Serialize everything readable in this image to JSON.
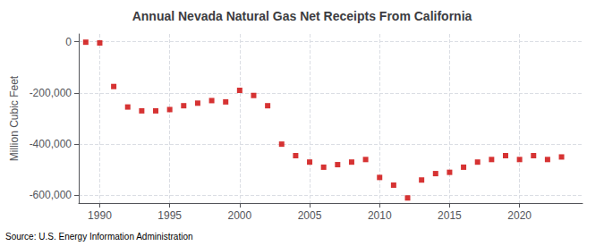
{
  "chart_data": {
    "type": "scatter",
    "title": "Annual Nevada Natural Gas Net Receipts From California",
    "ylabel": "Million Cubic Feet",
    "annotation": "Source: U.S. Energy Information Administration",
    "x": [
      1989,
      1990,
      1991,
      1992,
      1993,
      1994,
      1995,
      1996,
      1997,
      1998,
      1999,
      2000,
      2001,
      2002,
      2003,
      2004,
      2005,
      2006,
      2007,
      2008,
      2009,
      2010,
      2011,
      2012,
      2013,
      2014,
      2015,
      2016,
      2017,
      2018,
      2019,
      2020,
      2021,
      2022,
      2023
    ],
    "values": [
      -2000,
      -5000,
      -175000,
      -255000,
      -270000,
      -270000,
      -265000,
      -250000,
      -240000,
      -230000,
      -235000,
      -190000,
      -210000,
      -250000,
      -400000,
      -445000,
      -470000,
      -490000,
      -480000,
      -470000,
      -460000,
      -530000,
      -560000,
      -610000,
      -540000,
      -515000,
      -510000,
      -490000,
      -470000,
      -460000,
      -445000,
      -460000,
      -445000,
      -460000,
      -450000
    ],
    "color": "#cc0000",
    "marker": "square",
    "xlim": [
      1988.5,
      2024.5
    ],
    "xticks": [
      1990,
      1995,
      2000,
      2005,
      2010,
      2015,
      2020
    ],
    "ylim": [
      -630000,
      30000
    ],
    "yticks": [
      0,
      {
        "value": -200000,
        "label": "-200,000"
      },
      {
        "value": -400000,
        "label": "-400,000"
      },
      {
        "value": -600000,
        "label": "-600,000"
      }
    ],
    "grid": true
  }
}
